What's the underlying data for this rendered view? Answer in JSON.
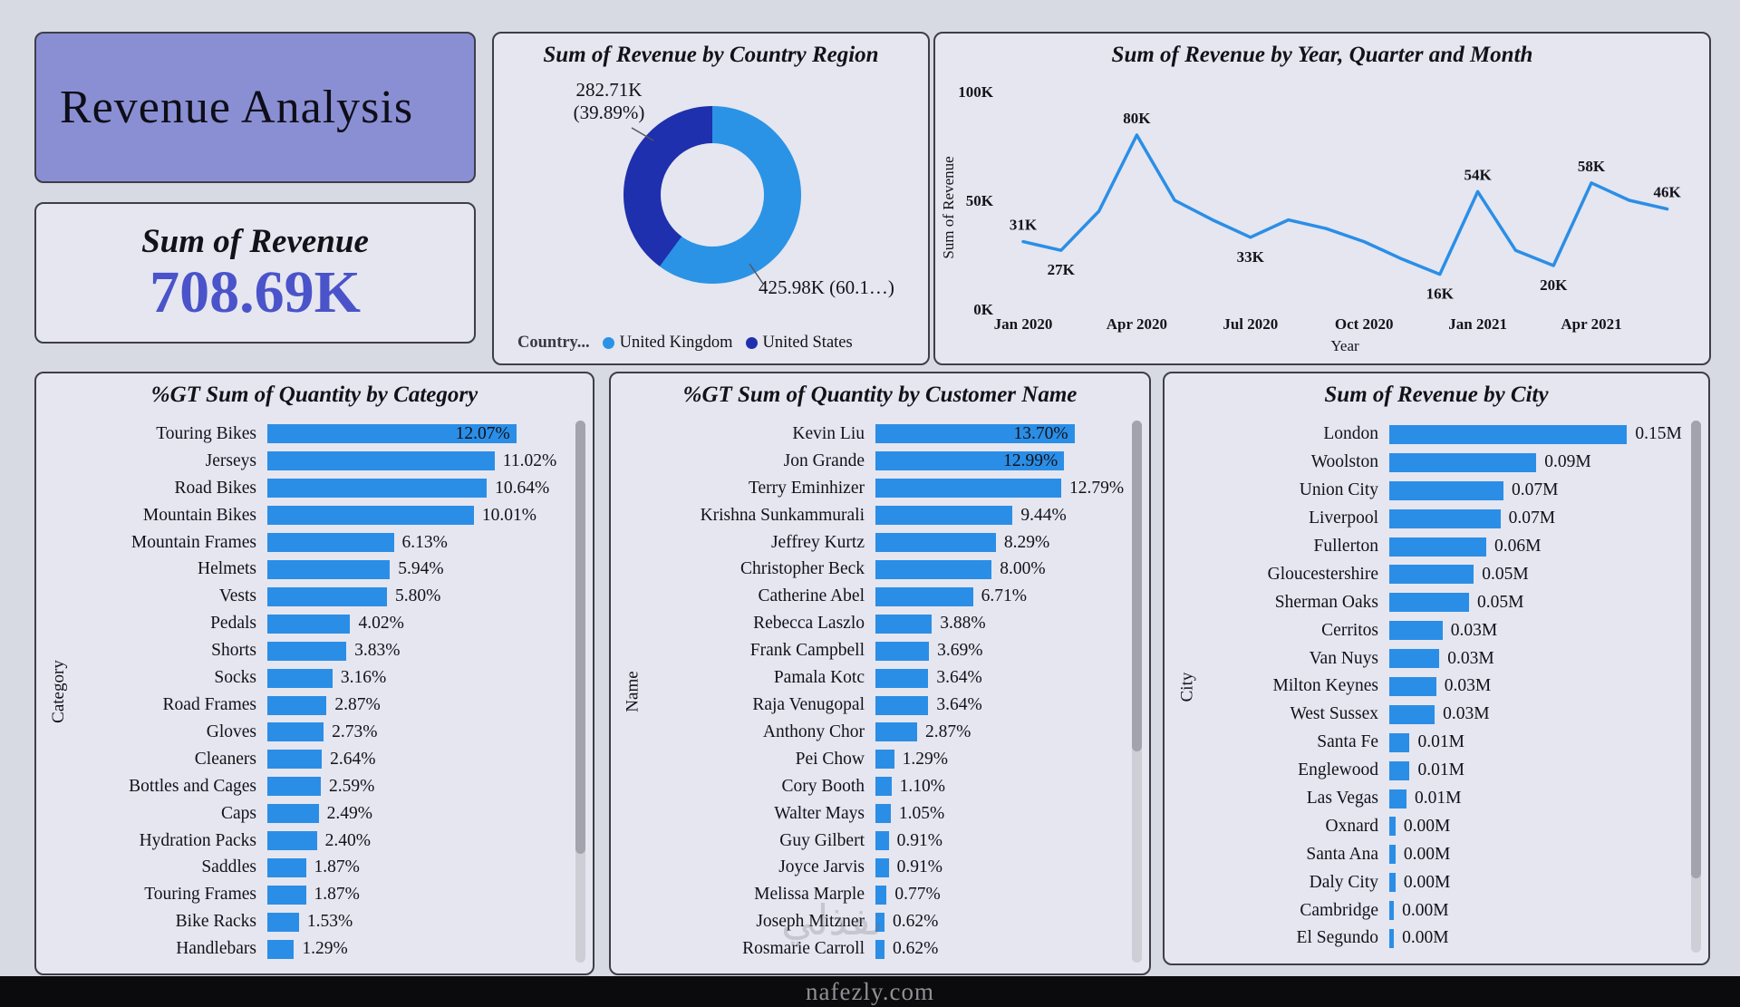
{
  "page": {
    "background": "#d8dae3",
    "card_background": "#e5e6f0",
    "accent_blue": "#2b8ee6",
    "footer_watermark": "nafezly.com",
    "ghost_watermark": "نفذلي"
  },
  "title_card": {
    "title": "Revenue Analysis"
  },
  "revenue_card": {
    "label": "Sum of Revenue",
    "value": "708.69K"
  },
  "chart_data": [
    {
      "id": "country_donut",
      "type": "pie",
      "title": "Sum of Revenue by Country Region",
      "legend_title": "Country...",
      "legend_position": "bottom",
      "segments": [
        {
          "label": "United Kingdom",
          "value_k": 425.98,
          "percent": 60.11,
          "value_text": "425.98K (60.1…)",
          "color": "#2a93e6"
        },
        {
          "label": "United States",
          "value_k": 282.71,
          "percent": 39.89,
          "value_text": "282.71K (39.89%)",
          "color": "#1e30ad"
        }
      ],
      "callouts": {
        "us_line1": "282.71K",
        "us_line2": "(39.89%)",
        "uk": "425.98K (60.1…)"
      }
    },
    {
      "id": "revenue_line",
      "type": "line",
      "title": "Sum of Revenue by Year, Quarter and Month",
      "xlabel": "Year",
      "ylabel": "Sum of Revenue",
      "ylim_k": [
        0,
        100
      ],
      "grid": false,
      "line_color": "#2b8ee6",
      "y_ticks": [
        {
          "label": "100K",
          "value": 100
        },
        {
          "label": "50K",
          "value": 50
        },
        {
          "label": "0K",
          "value": 0
        }
      ],
      "x_ticks": [
        {
          "label": "Jan 2020",
          "index": 0
        },
        {
          "label": "Apr 2020",
          "index": 3
        },
        {
          "label": "Jul 2020",
          "index": 6
        },
        {
          "label": "Oct 2020",
          "index": 9
        },
        {
          "label": "Jan 2021",
          "index": 12
        },
        {
          "label": "Apr 2021",
          "index": 15
        }
      ],
      "x": [
        "Jan 2020",
        "Feb 2020",
        "Mar 2020",
        "Apr 2020",
        "May 2020",
        "Jun 2020",
        "Jul 2020",
        "Aug 2020",
        "Sep 2020",
        "Oct 2020",
        "Nov 2020",
        "Dec 2020",
        "Jan 2021",
        "Feb 2021",
        "Mar 2021",
        "Apr 2021",
        "May 2021",
        "Jun 2021"
      ],
      "values_k": [
        31,
        27,
        45,
        80,
        50,
        41,
        33,
        41,
        37,
        31,
        23,
        16,
        54,
        27,
        20,
        58,
        50,
        46
      ],
      "point_labels": [
        {
          "index": 0,
          "text": "31K",
          "placement": "above"
        },
        {
          "index": 1,
          "text": "27K",
          "placement": "below"
        },
        {
          "index": 3,
          "text": "80K",
          "placement": "above"
        },
        {
          "index": 6,
          "text": "33K",
          "placement": "below"
        },
        {
          "index": 11,
          "text": "16K",
          "placement": "below"
        },
        {
          "index": 12,
          "text": "54K",
          "placement": "above"
        },
        {
          "index": 14,
          "text": "20K",
          "placement": "below"
        },
        {
          "index": 15,
          "text": "58K",
          "placement": "above"
        },
        {
          "index": 17,
          "text": "46K",
          "placement": "above"
        }
      ]
    },
    {
      "id": "quantity_by_category",
      "type": "bar",
      "orientation": "horizontal",
      "title": "%GT Sum of Quantity by Category",
      "axis_label": "Category",
      "rows": [
        {
          "label": "Touring Bikes",
          "value": 12.07,
          "value_text": "12.07%"
        },
        {
          "label": "Jerseys",
          "value": 11.02,
          "value_text": "11.02%"
        },
        {
          "label": "Road Bikes",
          "value": 10.64,
          "value_text": "10.64%"
        },
        {
          "label": "Mountain Bikes",
          "value": 10.01,
          "value_text": "10.01%"
        },
        {
          "label": "Mountain Frames",
          "value": 6.13,
          "value_text": "6.13%"
        },
        {
          "label": "Helmets",
          "value": 5.94,
          "value_text": "5.94%"
        },
        {
          "label": "Vests",
          "value": 5.8,
          "value_text": "5.80%"
        },
        {
          "label": "Pedals",
          "value": 4.02,
          "value_text": "4.02%"
        },
        {
          "label": "Shorts",
          "value": 3.83,
          "value_text": "3.83%"
        },
        {
          "label": "Socks",
          "value": 3.16,
          "value_text": "3.16%"
        },
        {
          "label": "Road Frames",
          "value": 2.87,
          "value_text": "2.87%"
        },
        {
          "label": "Gloves",
          "value": 2.73,
          "value_text": "2.73%"
        },
        {
          "label": "Cleaners",
          "value": 2.64,
          "value_text": "2.64%"
        },
        {
          "label": "Bottles and Cages",
          "value": 2.59,
          "value_text": "2.59%"
        },
        {
          "label": "Caps",
          "value": 2.49,
          "value_text": "2.49%"
        },
        {
          "label": "Hydration Packs",
          "value": 2.4,
          "value_text": "2.40%"
        },
        {
          "label": "Saddles",
          "value": 1.87,
          "value_text": "1.87%"
        },
        {
          "label": "Touring Frames",
          "value": 1.87,
          "value_text": "1.87%"
        },
        {
          "label": "Bike Racks",
          "value": 1.53,
          "value_text": "1.53%"
        },
        {
          "label": "Handlebars",
          "value": 1.29,
          "value_text": "1.29%"
        }
      ]
    },
    {
      "id": "quantity_by_customer",
      "type": "bar",
      "orientation": "horizontal",
      "title": "%GT Sum of Quantity by Customer Name",
      "axis_label": "Name",
      "rows": [
        {
          "label": "Kevin Liu",
          "value": 13.7,
          "value_text": "13.70%"
        },
        {
          "label": "Jon Grande",
          "value": 12.99,
          "value_text": "12.99%"
        },
        {
          "label": "Terry Eminhizer",
          "value": 12.79,
          "value_text": "12.79%"
        },
        {
          "label": "Krishna Sunkammurali",
          "value": 9.44,
          "value_text": "9.44%"
        },
        {
          "label": "Jeffrey Kurtz",
          "value": 8.29,
          "value_text": "8.29%"
        },
        {
          "label": "Christopher Beck",
          "value": 8.0,
          "value_text": "8.00%"
        },
        {
          "label": "Catherine Abel",
          "value": 6.71,
          "value_text": "6.71%"
        },
        {
          "label": "Rebecca Laszlo",
          "value": 3.88,
          "value_text": "3.88%"
        },
        {
          "label": "Frank Campbell",
          "value": 3.69,
          "value_text": "3.69%"
        },
        {
          "label": "Pamala Kotc",
          "value": 3.64,
          "value_text": "3.64%"
        },
        {
          "label": "Raja Venugopal",
          "value": 3.64,
          "value_text": "3.64%"
        },
        {
          "label": "Anthony Chor",
          "value": 2.87,
          "value_text": "2.87%"
        },
        {
          "label": "Pei Chow",
          "value": 1.29,
          "value_text": "1.29%"
        },
        {
          "label": "Cory Booth",
          "value": 1.1,
          "value_text": "1.10%"
        },
        {
          "label": "Walter Mays",
          "value": 1.05,
          "value_text": "1.05%"
        },
        {
          "label": "Guy Gilbert",
          "value": 0.91,
          "value_text": "0.91%"
        },
        {
          "label": "Joyce Jarvis",
          "value": 0.91,
          "value_text": "0.91%"
        },
        {
          "label": "Melissa Marple",
          "value": 0.77,
          "value_text": "0.77%"
        },
        {
          "label": "Joseph Mitzner",
          "value": 0.62,
          "value_text": "0.62%"
        },
        {
          "label": "Rosmarie Carroll",
          "value": 0.62,
          "value_text": "0.62%"
        }
      ]
    },
    {
      "id": "revenue_by_city",
      "type": "bar",
      "orientation": "horizontal",
      "title": "Sum of Revenue by City",
      "axis_label": "City",
      "rows": [
        {
          "label": "London",
          "value": 0.152,
          "value_text": "0.15M"
        },
        {
          "label": "Woolston",
          "value": 0.094,
          "value_text": "0.09M"
        },
        {
          "label": "Union City",
          "value": 0.073,
          "value_text": "0.07M"
        },
        {
          "label": "Liverpool",
          "value": 0.071,
          "value_text": "0.07M"
        },
        {
          "label": "Fullerton",
          "value": 0.062,
          "value_text": "0.06M"
        },
        {
          "label": "Gloucestershire",
          "value": 0.054,
          "value_text": "0.05M"
        },
        {
          "label": "Sherman Oaks",
          "value": 0.051,
          "value_text": "0.05M"
        },
        {
          "label": "Cerritos",
          "value": 0.034,
          "value_text": "0.03M"
        },
        {
          "label": "Van Nuys",
          "value": 0.032,
          "value_text": "0.03M"
        },
        {
          "label": "Milton Keynes",
          "value": 0.03,
          "value_text": "0.03M"
        },
        {
          "label": "West Sussex",
          "value": 0.029,
          "value_text": "0.03M"
        },
        {
          "label": "Santa Fe",
          "value": 0.013,
          "value_text": "0.01M"
        },
        {
          "label": "Englewood",
          "value": 0.013,
          "value_text": "0.01M"
        },
        {
          "label": "Las Vegas",
          "value": 0.011,
          "value_text": "0.01M"
        },
        {
          "label": "Oxnard",
          "value": 0.004,
          "value_text": "0.00M"
        },
        {
          "label": "Santa Ana",
          "value": 0.004,
          "value_text": "0.00M"
        },
        {
          "label": "Daly City",
          "value": 0.004,
          "value_text": "0.00M"
        },
        {
          "label": "Cambridge",
          "value": 0.003,
          "value_text": "0.00M"
        },
        {
          "label": "El Segundo",
          "value": 0.003,
          "value_text": "0.00M"
        }
      ]
    }
  ]
}
